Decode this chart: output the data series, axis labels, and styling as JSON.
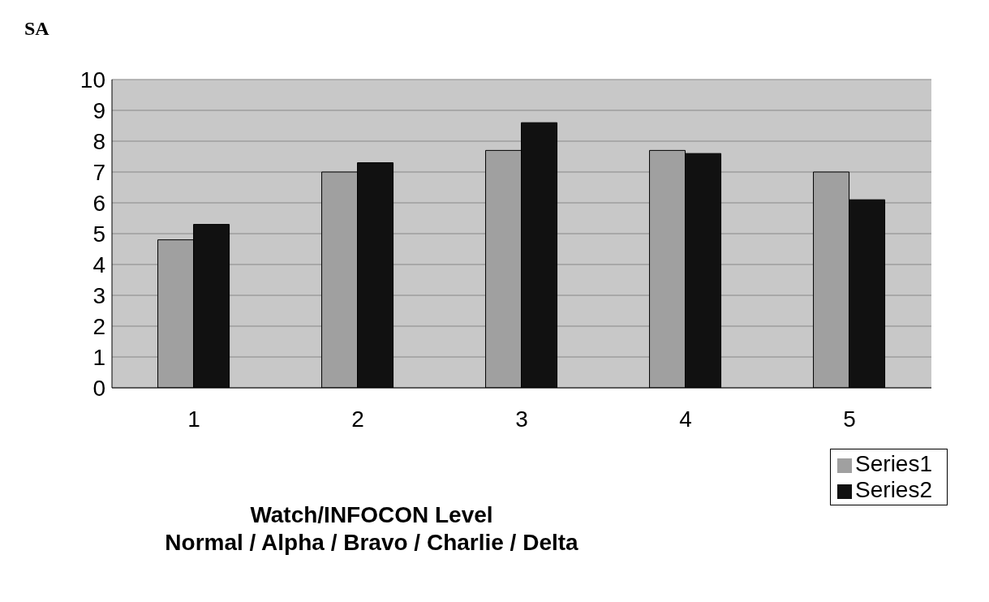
{
  "chart_data": {
    "type": "bar",
    "title": "SA",
    "xlabel": "Watch/INFOCON Level\nNormal / Alpha / Bravo / Charlie / Delta",
    "categories": [
      "1",
      "2",
      "3",
      "4",
      "5"
    ],
    "series": [
      {
        "name": "Series1",
        "color": "#a0a0a0",
        "values": [
          4.8,
          7.0,
          7.7,
          7.7,
          7.0
        ]
      },
      {
        "name": "Series2",
        "color": "#111111",
        "values": [
          5.3,
          7.3,
          8.6,
          7.6,
          6.1
        ]
      }
    ],
    "ylim": [
      0,
      10
    ],
    "yticks": [
      0,
      1,
      2,
      3,
      4,
      5,
      6,
      7,
      8,
      9,
      10
    ],
    "grid": "y",
    "legend": "bottom right"
  }
}
